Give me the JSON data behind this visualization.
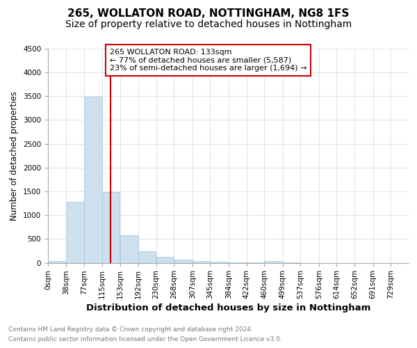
{
  "title1": "265, WOLLATON ROAD, NOTTINGHAM, NG8 1FS",
  "title2": "Size of property relative to detached houses in Nottingham",
  "xlabel": "Distribution of detached houses by size in Nottingham",
  "ylabel": "Number of detached properties",
  "annotation_line1": "265 WOLLATON ROAD: 133sqm",
  "annotation_line2": "← 77% of detached houses are smaller (5,587)",
  "annotation_line3": "23% of semi-detached houses are larger (1,694) →",
  "footnote1": "Contains HM Land Registry data © Crown copyright and database right 2024.",
  "footnote2": "Contains public sector information licensed under the Open Government Licence v3.0.",
  "bar_edges": [
    0,
    38,
    77,
    115,
    153,
    192,
    230,
    268,
    307,
    345,
    384,
    422,
    460,
    499,
    537,
    576,
    614,
    652,
    691,
    729,
    767
  ],
  "bar_heights": [
    30,
    1280,
    3490,
    1480,
    580,
    245,
    130,
    65,
    40,
    15,
    5,
    2,
    30,
    1,
    0,
    0,
    0,
    0,
    0,
    0
  ],
  "bar_color": "#cce0ee",
  "bar_edge_color": "#aac4d8",
  "vline_x": 133,
  "vline_color": "#cc0000",
  "annotation_box_color": "#cc0000",
  "ylim": [
    0,
    4500
  ],
  "yticks": [
    0,
    500,
    1000,
    1500,
    2000,
    2500,
    3000,
    3500,
    4000,
    4500
  ],
  "bg_color": "#ffffff",
  "grid_color": "#cdd8e3",
  "title1_fontsize": 11,
  "title2_fontsize": 10,
  "xlabel_fontsize": 9.5,
  "ylabel_fontsize": 8.5,
  "annotation_fontsize": 8,
  "tick_fontsize": 7.5,
  "footnote_fontsize": 6.5
}
